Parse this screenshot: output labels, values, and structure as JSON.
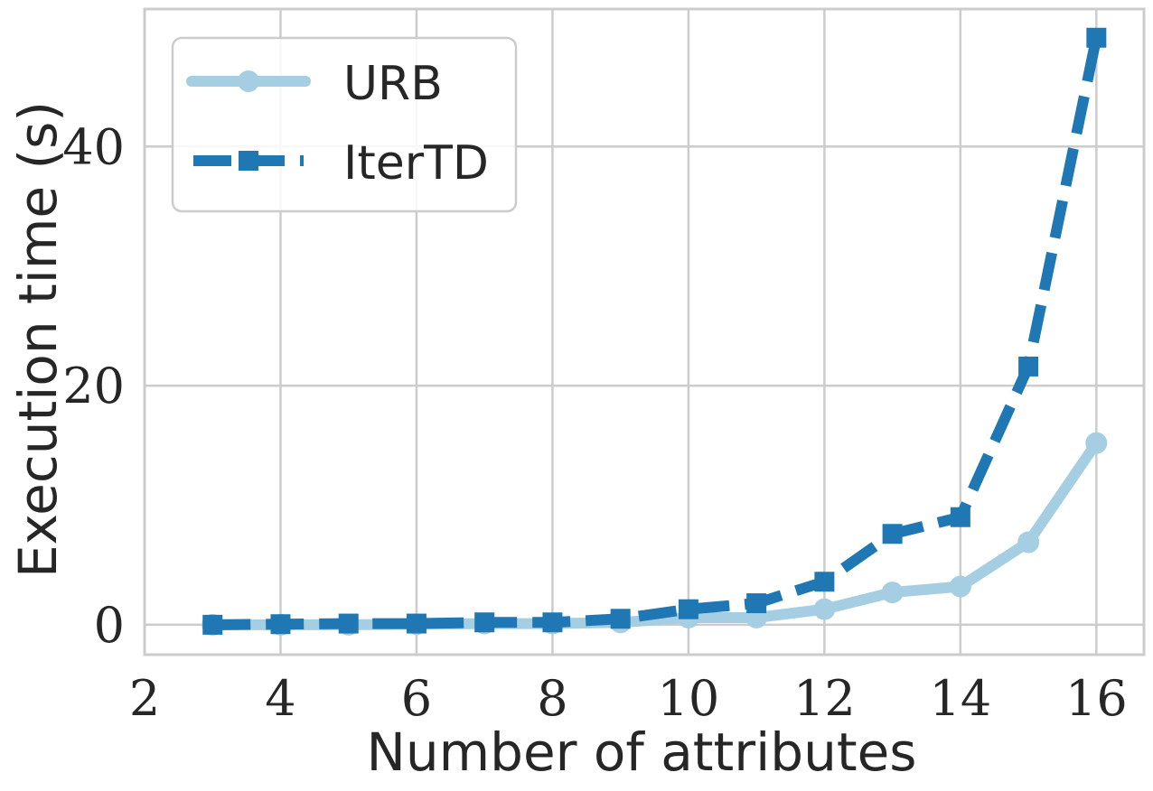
{
  "chart_data": {
    "type": "line",
    "title": "",
    "xlabel": "Number of attributes",
    "ylabel": "Execution time (s)",
    "xlim": [
      2,
      16.7
    ],
    "ylim": [
      -2.5,
      51.5
    ],
    "xticks": [
      2,
      4,
      6,
      8,
      10,
      12,
      14,
      16
    ],
    "yticks": [
      0,
      20,
      40
    ],
    "grid": true,
    "legend_position": "top-left",
    "series": [
      {
        "name": "URB",
        "color": "#a6cee3",
        "line_style": "solid",
        "marker": "circle",
        "x": [
          3,
          4,
          5,
          6,
          7,
          8,
          9,
          10,
          11,
          12,
          13,
          14,
          15,
          16
        ],
        "y": [
          0.0,
          0.0,
          0.0,
          0.05,
          0.1,
          0.1,
          0.2,
          0.6,
          0.6,
          1.3,
          2.7,
          3.2,
          6.9,
          15.2
        ]
      },
      {
        "name": "IterTD",
        "color": "#1f78b4",
        "line_style": "dashed",
        "marker": "square",
        "x": [
          3,
          4,
          5,
          6,
          7,
          8,
          9,
          10,
          11,
          12,
          13,
          14,
          15,
          16
        ],
        "y": [
          0.0,
          0.05,
          0.1,
          0.1,
          0.2,
          0.2,
          0.5,
          1.3,
          1.8,
          3.6,
          7.6,
          9.0,
          21.6,
          49.1
        ]
      }
    ]
  }
}
